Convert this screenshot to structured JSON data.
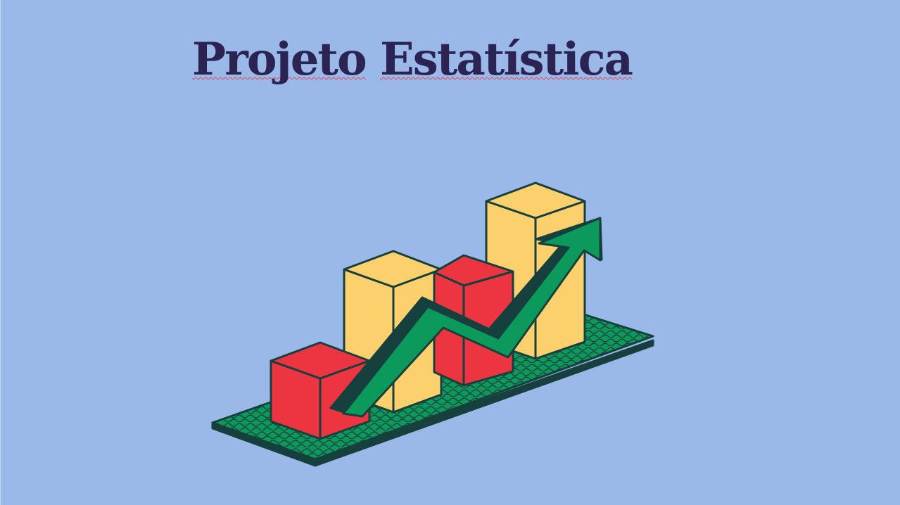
{
  "slide": {
    "title_words": [
      "Projeto",
      "Estatística"
    ]
  },
  "illustration": {
    "icon": "bar-chart-arrow-illustration",
    "colors": {
      "background": "#9ab9e9",
      "title": "#2b2452",
      "base": "#0c9a5c",
      "outline": "#16403d",
      "bar_red": "#ec3540",
      "bar_yellow": "#fdd06e",
      "arrow": "#0c9a5c",
      "arrow_shadow": "#16403d"
    }
  }
}
